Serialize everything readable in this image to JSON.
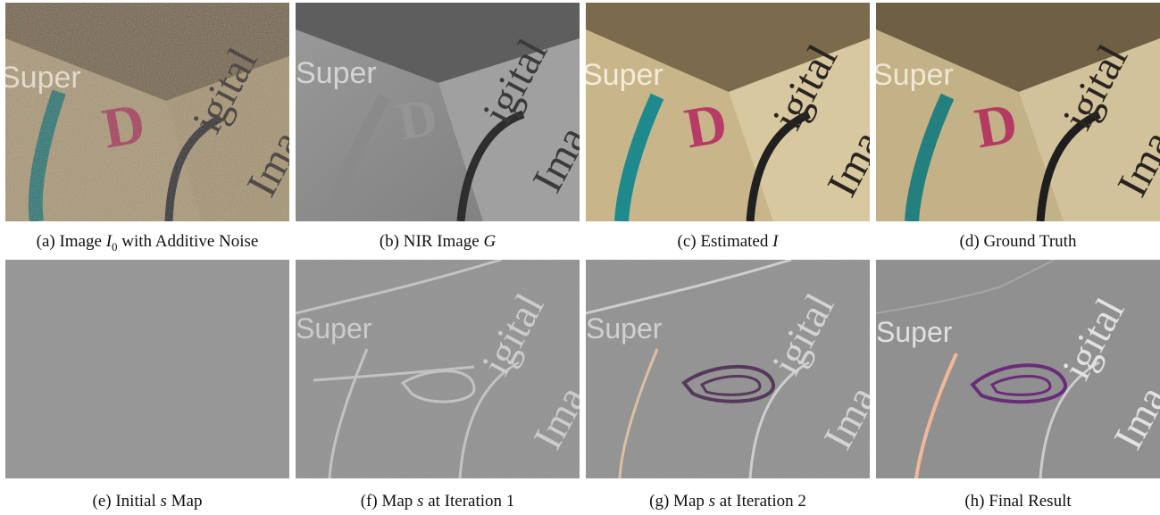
{
  "figure": {
    "panels": [
      {
        "id": "a",
        "prefix": "(a) Image ",
        "sym": "I",
        "sub": "0",
        "suffix": " with Additive Noise"
      },
      {
        "id": "b",
        "prefix": "(b) NIR Image ",
        "sym": "G",
        "sub": "",
        "suffix": ""
      },
      {
        "id": "c",
        "prefix": "(c) Estimated ",
        "sym": "I",
        "sub": "",
        "suffix": ""
      },
      {
        "id": "d",
        "prefix": "(d) Ground Truth",
        "sym": "",
        "sub": "",
        "suffix": ""
      },
      {
        "id": "e",
        "prefix": "(e) Initial ",
        "sym": "s",
        "sub": "",
        "suffix": " Map"
      },
      {
        "id": "f",
        "prefix": "(f) Map ",
        "sym": "s",
        "sub": "",
        "suffix": " at Iteration 1"
      },
      {
        "id": "g",
        "prefix": "(g) Map ",
        "sym": "s",
        "sub": "",
        "suffix": " at Iteration 2"
      },
      {
        "id": "h",
        "prefix": "(h) Final Result",
        "sym": "",
        "sub": "",
        "suffix": ""
      }
    ],
    "image_text": {
      "super": "Super",
      "igital": "igital",
      "ima": "Ima",
      "d_letter": "D"
    }
  }
}
